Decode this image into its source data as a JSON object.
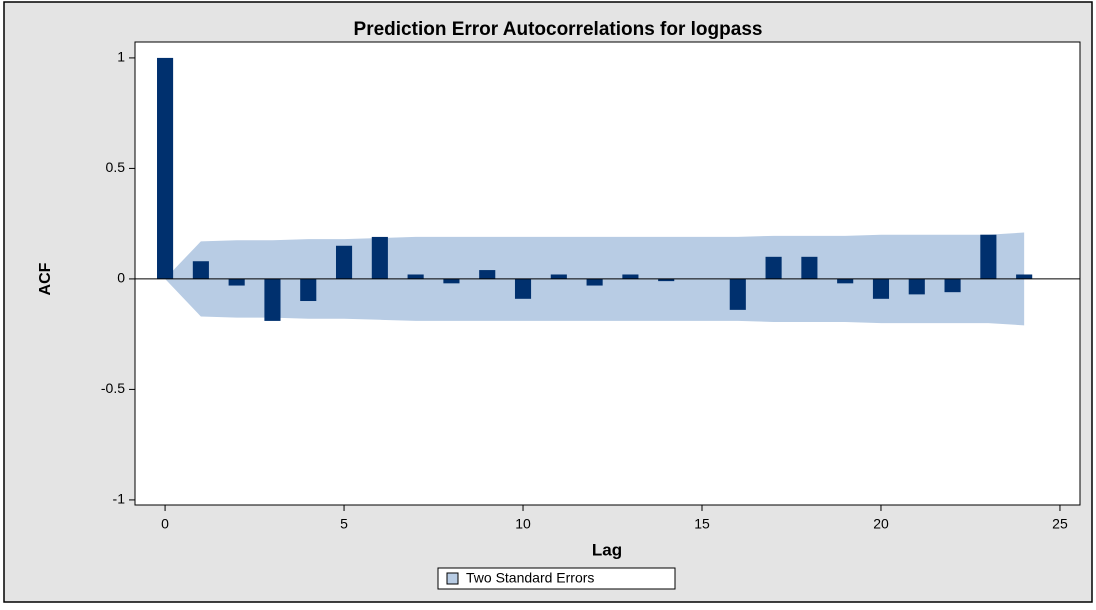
{
  "chart_data": {
    "type": "bar",
    "title": "Prediction Error Autocorrelations for logpass",
    "x_label": "Lag",
    "y_label": "ACF",
    "x": [
      0,
      1,
      2,
      3,
      4,
      5,
      6,
      7,
      8,
      9,
      10,
      11,
      12,
      13,
      14,
      15,
      16,
      17,
      18,
      19,
      20,
      21,
      22,
      23,
      24
    ],
    "series": [
      {
        "name": "ACF",
        "color": "#00306e",
        "values": [
          1.0,
          0.08,
          -0.03,
          -0.19,
          -0.1,
          0.15,
          0.19,
          0.02,
          -0.02,
          0.04,
          -0.09,
          0.02,
          -0.03,
          0.02,
          -0.01,
          0,
          -0.14,
          0.1,
          0.1,
          -0.02,
          -0.09,
          -0.07,
          -0.06,
          0.2,
          0.02
        ]
      }
    ],
    "band": {
      "name": "Two Standard Errors",
      "color": "#b8cce4",
      "upper": [
        0,
        0.17,
        0.175,
        0.175,
        0.18,
        0.18,
        0.185,
        0.19,
        0.19,
        0.19,
        0.19,
        0.19,
        0.19,
        0.19,
        0.19,
        0.19,
        0.19,
        0.195,
        0.195,
        0.195,
        0.2,
        0.2,
        0.2,
        0.2,
        0.21
      ],
      "lower": [
        0,
        -0.17,
        -0.175,
        -0.175,
        -0.18,
        -0.18,
        -0.185,
        -0.19,
        -0.19,
        -0.19,
        -0.19,
        -0.19,
        -0.19,
        -0.19,
        -0.19,
        -0.19,
        -0.19,
        -0.195,
        -0.195,
        -0.195,
        -0.2,
        -0.2,
        -0.2,
        -0.2,
        -0.21
      ]
    },
    "reference_line": 0,
    "xlim": [
      -0.84,
      25.56
    ],
    "xticks": [
      0,
      5,
      10,
      15,
      20,
      25
    ],
    "ylim": [
      -1.023,
      1.072
    ],
    "yticks": [
      -1,
      -0.5,
      0,
      0.5,
      1
    ]
  }
}
